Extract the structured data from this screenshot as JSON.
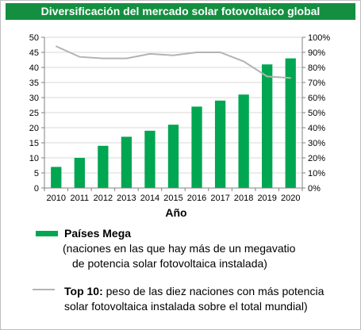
{
  "chart_data": {
    "type": "bar",
    "title": "Diversificación del mercado solar fotovoltaico global",
    "xlabel": "Año",
    "categories": [
      "2010",
      "2011",
      "2012",
      "2013",
      "2014",
      "2015",
      "2016",
      "2017",
      "2018",
      "2019",
      "2020"
    ],
    "y_left": {
      "min": 0,
      "max": 50,
      "step": 5,
      "ticks": [
        "0",
        "5",
        "10",
        "15",
        "20",
        "25",
        "30",
        "35",
        "40",
        "45",
        "50"
      ]
    },
    "y_right": {
      "min": 0,
      "max": 100,
      "step": 10,
      "ticks": [
        "0%",
        "10%",
        "20%",
        "30%",
        "40%",
        "50%",
        "60%",
        "70%",
        "80%",
        "90%",
        "100%"
      ]
    },
    "series": [
      {
        "name": "Países Mega",
        "kind": "bar",
        "axis": "left",
        "color": "#00a651",
        "values": [
          7,
          10,
          14,
          17,
          19,
          21,
          27,
          29,
          31,
          41,
          43
        ]
      },
      {
        "name": "Top 10",
        "kind": "line",
        "axis": "right",
        "color": "#b3b3b3",
        "values": [
          94,
          87,
          86,
          86,
          89,
          88,
          90,
          90,
          84,
          74,
          73
        ]
      }
    ],
    "grid": true
  },
  "legend": {
    "bar_title": "Países Mega",
    "bar_desc_1": "(naciones en las que hay más de un megavatio",
    "bar_desc_2": "de potencia solar fotovoltaica instalada)",
    "line_title": "Top 10:",
    "line_desc_1": " peso de las diez naciones con más potencia",
    "line_desc_2": "solar fotovoltaica instalada sobre el total mundial)"
  },
  "colors": {
    "title_bg": "#148f40",
    "bar": "#00a651",
    "line": "#b3b3b3",
    "grid": "#d9d9d9"
  }
}
